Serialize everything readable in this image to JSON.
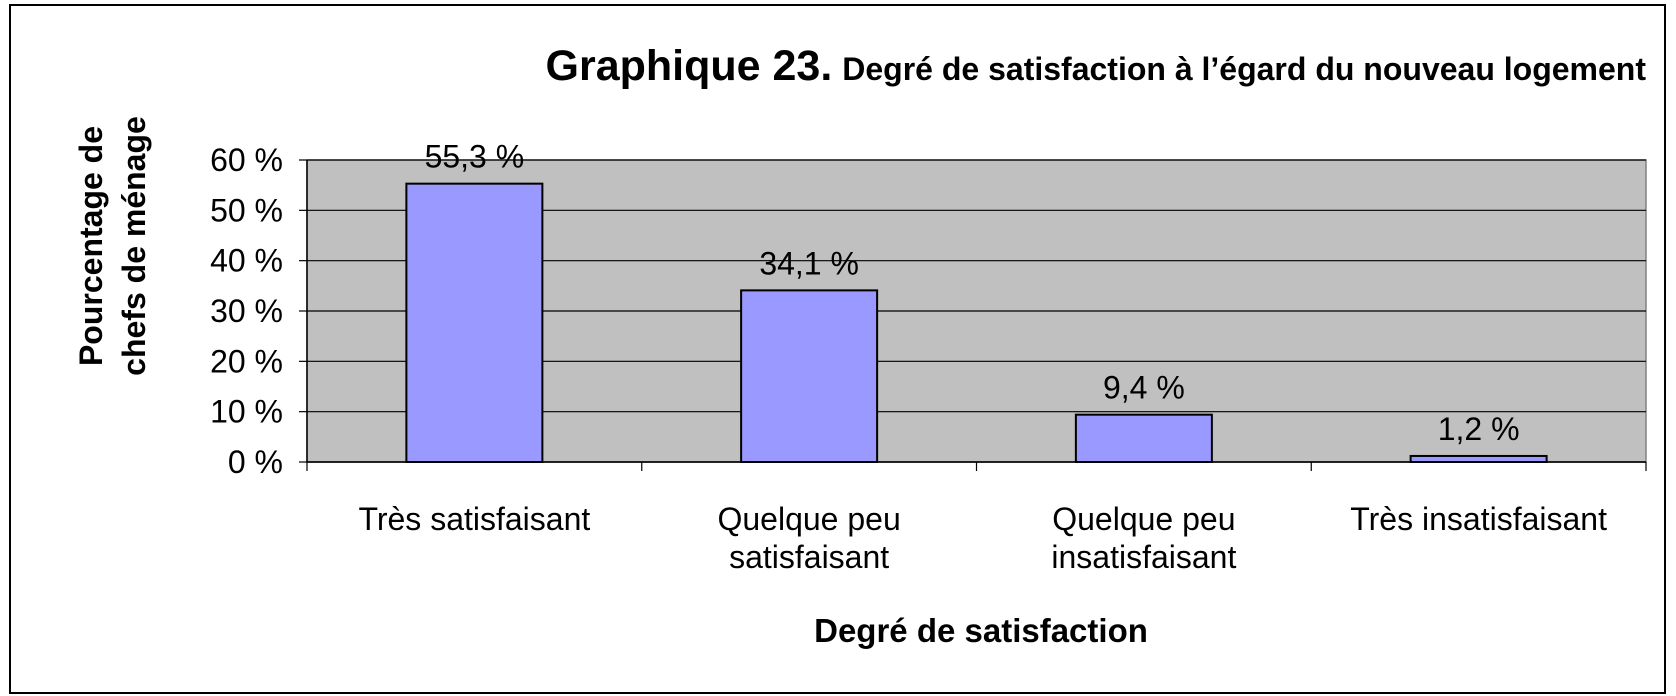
{
  "chart_data": {
    "type": "bar",
    "title": "Graphique 23.",
    "subtitle": "Degré de satisfaction à l’égard du nouveau logement",
    "ylabel_lines": [
      "Pourcentage de",
      "chefs de ménage"
    ],
    "xlabel": "Degré de satisfaction",
    "categories": [
      "Très satisfaisant",
      "Quelque peu satisfaisant",
      "Quelque peu insatisfaisant",
      "Très insatisfaisant"
    ],
    "values": [
      55.3,
      34.1,
      9.4,
      1.2
    ],
    "value_labels": [
      "55,3 %",
      "34,1 %",
      "9,4 %",
      "1,2 %"
    ],
    "color": "#9999ff",
    "ylim": [
      0,
      60
    ],
    "yticks": [
      {
        "value": 0,
        "label": "0 %"
      },
      {
        "value": 10,
        "label": "10 %"
      },
      {
        "value": 20,
        "label": "20 %"
      },
      {
        "value": 30,
        "label": "30 %"
      },
      {
        "value": 40,
        "label": "40 %"
      },
      {
        "value": 50,
        "label": "50 %"
      },
      {
        "value": 60,
        "label": "60 %"
      }
    ],
    "grid": true
  }
}
